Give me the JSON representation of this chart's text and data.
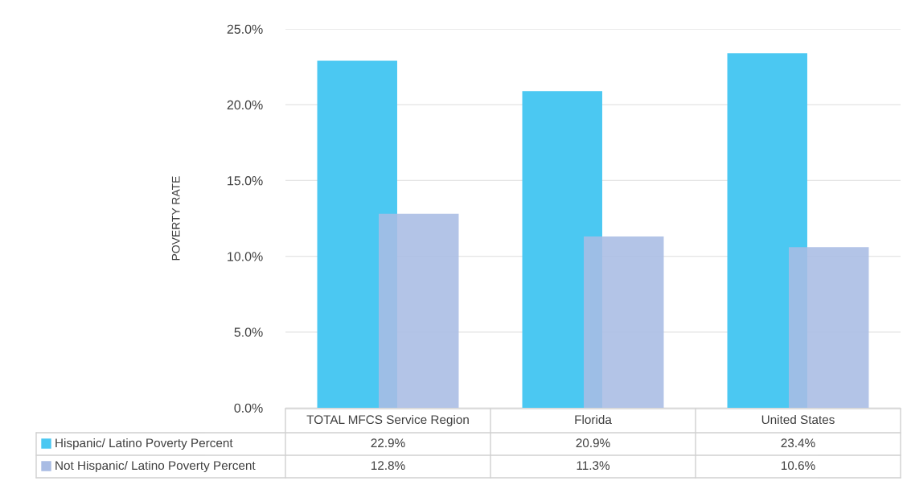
{
  "chart_data": {
    "type": "bar",
    "ylabel": "POVERTY RATE",
    "categories": [
      "TOTAL MFCS Service Region",
      "Florida",
      "United States"
    ],
    "series": [
      {
        "name": "Hispanic/ Latino Poverty Percent",
        "color": "#4bc8f2",
        "values": [
          22.9,
          20.9,
          23.4
        ],
        "value_labels": [
          "22.9%",
          "20.9%",
          "23.4%"
        ]
      },
      {
        "name": "Not Hispanic/ Latino Poverty Percent",
        "color": "#a9bce4",
        "values": [
          12.8,
          11.3,
          10.6
        ],
        "value_labels": [
          "12.8%",
          "11.3%",
          "10.6%"
        ]
      }
    ],
    "ylim": [
      0,
      25
    ],
    "yticks": [
      {
        "value": 0,
        "label": "0.0%"
      },
      {
        "value": 5,
        "label": "5.0%"
      },
      {
        "value": 10,
        "label": "10.0%"
      },
      {
        "value": 15,
        "label": "15.0%"
      },
      {
        "value": 20,
        "label": "20.0%"
      },
      {
        "value": 25,
        "label": "25.0%"
      }
    ],
    "grid": "y",
    "legend": "bottom"
  }
}
